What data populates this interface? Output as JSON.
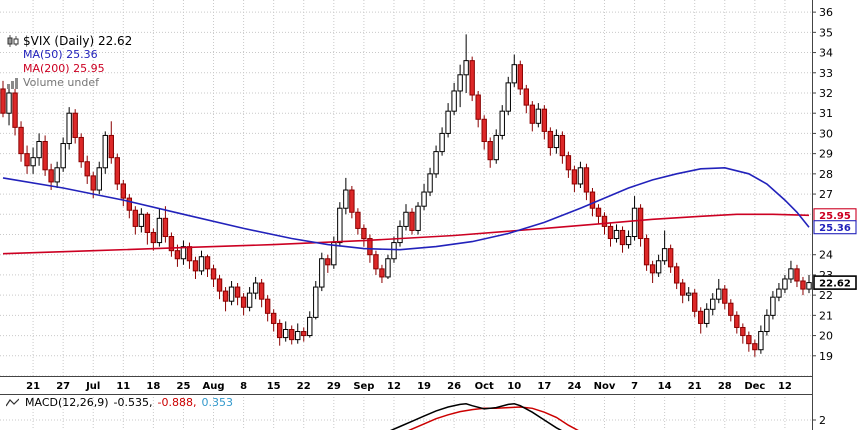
{
  "legend": {
    "symbol": "$VIX (Daily) 22.62",
    "ma50": "MA(50) 25.36",
    "ma200": "MA(200) 25.95",
    "volume": "Volume undef"
  },
  "macd_legend": {
    "name": "MACD(12,26,9)",
    "macd_value": "-0.535,",
    "signal_value": "-0.888,",
    "hist_value": "0.353"
  },
  "badges": [
    {
      "text": "25.95",
      "v": 25.95,
      "color": "#cc0022",
      "bold": false
    },
    {
      "text": "25.36",
      "v": 25.36,
      "color": "#2222bb",
      "bold": false
    },
    {
      "text": "22.62",
      "v": 22.62,
      "color": "#000000",
      "bold": true
    }
  ],
  "colors": {
    "up_stroke": "#000000",
    "up_fill": "#ffffff",
    "down_stroke": "#8a0000",
    "down_fill": "#dd2828",
    "ma50": "#2222bb",
    "ma200": "#cc0022",
    "macd_line": "#000000",
    "macd_signal": "#cc0000",
    "macd_hist_text": "#3399cc",
    "grid": "#c9c9c9",
    "border": "#444444",
    "axis_text": "#000000",
    "volume_legend": "#777777"
  },
  "chart_data": {
    "type": "candlestick",
    "title": "$VIX (Daily)",
    "last_price": 22.62,
    "overlays": [
      {
        "name": "MA(50)",
        "last": 25.36
      },
      {
        "name": "MA(200)",
        "last": 25.95
      },
      {
        "name": "Volume",
        "last": "undef"
      }
    ],
    "y_axis": {
      "max": 36.6,
      "min": 18.0,
      "labels": [
        36,
        35,
        34,
        33,
        32,
        31,
        30,
        29,
        28,
        27,
        24,
        23,
        22,
        21,
        20,
        19
      ]
    },
    "x_axis": {
      "ticks": [
        {
          "label": "21",
          "i": 5
        },
        {
          "label": "27",
          "i": 10
        },
        {
          "label": "Jul",
          "i": 15
        },
        {
          "label": "11",
          "i": 20
        },
        {
          "label": "18",
          "i": 25
        },
        {
          "label": "25",
          "i": 30
        },
        {
          "label": "Aug",
          "i": 35
        },
        {
          "label": "8",
          "i": 40
        },
        {
          "label": "15",
          "i": 45
        },
        {
          "label": "22",
          "i": 50
        },
        {
          "label": "29",
          "i": 55
        },
        {
          "label": "Sep",
          "i": 60
        },
        {
          "label": "12",
          "i": 65
        },
        {
          "label": "19",
          "i": 70
        },
        {
          "label": "26",
          "i": 75
        },
        {
          "label": "Oct",
          "i": 80
        },
        {
          "label": "10",
          "i": 85
        },
        {
          "label": "17",
          "i": 90
        },
        {
          "label": "24",
          "i": 95
        },
        {
          "label": "Nov",
          "i": 100
        },
        {
          "label": "7",
          "i": 105
        },
        {
          "label": "14",
          "i": 110
        },
        {
          "label": "21",
          "i": 115
        },
        {
          "label": "28",
          "i": 120
        },
        {
          "label": "Dec",
          "i": 125
        },
        {
          "label": "12",
          "i": 130
        }
      ]
    },
    "candles": [
      [
        32.2,
        32.6,
        30.8,
        31.0
      ],
      [
        31.0,
        32.3,
        30.4,
        32.0
      ],
      [
        32.0,
        32.2,
        29.9,
        30.3
      ],
      [
        30.3,
        30.6,
        28.6,
        29.0
      ],
      [
        29.0,
        29.4,
        28.0,
        28.4
      ],
      [
        28.4,
        29.3,
        28.0,
        28.8
      ],
      [
        28.8,
        30.0,
        28.4,
        29.6
      ],
      [
        29.6,
        29.9,
        27.9,
        28.2
      ],
      [
        28.2,
        28.5,
        27.2,
        27.6
      ],
      [
        27.6,
        28.6,
        27.3,
        28.3
      ],
      [
        28.3,
        29.8,
        28.1,
        29.5
      ],
      [
        29.5,
        31.3,
        29.2,
        31.0
      ],
      [
        31.0,
        31.2,
        29.5,
        29.8
      ],
      [
        29.8,
        30.0,
        28.3,
        28.6
      ],
      [
        28.6,
        28.9,
        27.5,
        27.9
      ],
      [
        27.9,
        28.1,
        26.8,
        27.2
      ],
      [
        27.2,
        28.6,
        27.0,
        28.3
      ],
      [
        28.3,
        30.1,
        28.0,
        29.9
      ],
      [
        29.9,
        30.6,
        28.5,
        28.8
      ],
      [
        28.8,
        29.0,
        27.2,
        27.5
      ],
      [
        27.5,
        27.7,
        26.4,
        26.8
      ],
      [
        26.8,
        27.0,
        25.8,
        26.2
      ],
      [
        26.2,
        26.4,
        25.0,
        25.4
      ],
      [
        25.4,
        26.3,
        25.1,
        26.0
      ],
      [
        26.0,
        26.1,
        24.5,
        25.1
      ],
      [
        25.1,
        25.3,
        24.2,
        24.6
      ],
      [
        24.6,
        26.3,
        24.4,
        25.8
      ],
      [
        25.8,
        26.4,
        24.6,
        24.9
      ],
      [
        24.9,
        25.1,
        23.9,
        24.2
      ],
      [
        24.2,
        24.5,
        23.4,
        23.8
      ],
      [
        23.8,
        24.7,
        23.5,
        24.4
      ],
      [
        24.4,
        24.6,
        23.3,
        23.7
      ],
      [
        23.7,
        23.9,
        22.8,
        23.2
      ],
      [
        23.2,
        24.2,
        23.0,
        23.9
      ],
      [
        23.9,
        24.0,
        22.9,
        23.3
      ],
      [
        23.3,
        23.5,
        22.4,
        22.8
      ],
      [
        22.8,
        23.0,
        21.8,
        22.2
      ],
      [
        22.2,
        22.4,
        21.2,
        21.7
      ],
      [
        21.7,
        22.7,
        21.5,
        22.4
      ],
      [
        22.4,
        22.6,
        21.5,
        21.9
      ],
      [
        21.9,
        22.1,
        21.0,
        21.4
      ],
      [
        21.4,
        22.4,
        21.2,
        22.1
      ],
      [
        22.1,
        22.9,
        21.8,
        22.6
      ],
      [
        22.6,
        22.8,
        21.4,
        21.8
      ],
      [
        21.8,
        22.0,
        20.7,
        21.1
      ],
      [
        21.1,
        21.3,
        20.2,
        20.6
      ],
      [
        20.6,
        20.8,
        19.5,
        19.9
      ],
      [
        19.9,
        20.7,
        19.7,
        20.3
      ],
      [
        20.3,
        20.5,
        19.56,
        19.8
      ],
      [
        19.8,
        20.6,
        19.6,
        20.2
      ],
      [
        20.2,
        20.4,
        19.7,
        20.0
      ],
      [
        20.0,
        21.2,
        19.9,
        20.9
      ],
      [
        20.9,
        22.7,
        20.8,
        22.4
      ],
      [
        22.4,
        24.1,
        22.2,
        23.8
      ],
      [
        23.8,
        24.0,
        23.1,
        23.5
      ],
      [
        23.5,
        24.9,
        23.3,
        24.6
      ],
      [
        24.6,
        26.6,
        24.4,
        26.3
      ],
      [
        26.3,
        27.8,
        26.0,
        27.2
      ],
      [
        27.2,
        27.4,
        25.8,
        26.1
      ],
      [
        26.1,
        26.3,
        25.0,
        25.3
      ],
      [
        25.3,
        25.5,
        24.4,
        24.8
      ],
      [
        24.8,
        25.0,
        23.6,
        24.0
      ],
      [
        24.0,
        24.2,
        23.0,
        23.3
      ],
      [
        23.3,
        23.5,
        22.6,
        22.9
      ],
      [
        22.9,
        24.0,
        22.8,
        23.8
      ],
      [
        23.8,
        24.9,
        23.6,
        24.6
      ],
      [
        24.6,
        25.7,
        24.4,
        25.4
      ],
      [
        25.4,
        26.5,
        25.2,
        26.1
      ],
      [
        26.1,
        26.3,
        25.0,
        25.2
      ],
      [
        25.2,
        26.6,
        25.0,
        26.4
      ],
      [
        26.4,
        27.5,
        26.2,
        27.1
      ],
      [
        27.1,
        28.3,
        26.9,
        28.0
      ],
      [
        28.0,
        29.4,
        27.8,
        29.1
      ],
      [
        29.1,
        30.3,
        28.9,
        30.0
      ],
      [
        30.0,
        31.5,
        29.8,
        31.1
      ],
      [
        31.1,
        32.5,
        30.9,
        32.1
      ],
      [
        32.1,
        33.4,
        31.3,
        32.9
      ],
      [
        32.9,
        34.9,
        32.0,
        33.6
      ],
      [
        33.6,
        33.8,
        31.6,
        31.9
      ],
      [
        31.9,
        32.1,
        30.3,
        30.7
      ],
      [
        30.7,
        30.9,
        29.2,
        29.6
      ],
      [
        29.6,
        29.8,
        28.3,
        28.7
      ],
      [
        28.7,
        30.2,
        28.5,
        29.9
      ],
      [
        29.9,
        31.4,
        29.7,
        31.1
      ],
      [
        31.1,
        32.8,
        30.9,
        32.5
      ],
      [
        32.5,
        33.9,
        32.3,
        33.4
      ],
      [
        33.4,
        33.6,
        31.9,
        32.2
      ],
      [
        32.2,
        32.4,
        31.0,
        31.4
      ],
      [
        31.4,
        31.6,
        30.1,
        30.5
      ],
      [
        30.5,
        31.5,
        30.3,
        31.2
      ],
      [
        31.2,
        31.4,
        29.7,
        30.1
      ],
      [
        30.1,
        30.3,
        28.9,
        29.3
      ],
      [
        29.3,
        30.2,
        29.0,
        29.9
      ],
      [
        29.9,
        30.1,
        28.5,
        28.9
      ],
      [
        28.9,
        29.1,
        27.8,
        28.2
      ],
      [
        28.2,
        28.4,
        27.1,
        27.5
      ],
      [
        27.5,
        28.6,
        27.3,
        28.3
      ],
      [
        28.3,
        28.5,
        26.7,
        27.1
      ],
      [
        27.1,
        27.3,
        25.9,
        26.3
      ],
      [
        26.3,
        26.5,
        25.5,
        25.9
      ],
      [
        25.9,
        26.1,
        25.0,
        25.4
      ],
      [
        25.4,
        25.6,
        24.4,
        24.8
      ],
      [
        24.8,
        25.5,
        24.6,
        25.2
      ],
      [
        25.2,
        25.4,
        24.1,
        24.5
      ],
      [
        24.5,
        25.2,
        24.3,
        24.9
      ],
      [
        24.9,
        26.9,
        24.7,
        26.3
      ],
      [
        26.3,
        26.5,
        24.4,
        24.8
      ],
      [
        24.8,
        25.0,
        23.2,
        23.5
      ],
      [
        23.5,
        23.7,
        22.6,
        23.1
      ],
      [
        23.1,
        24.0,
        22.9,
        23.7
      ],
      [
        23.7,
        25.2,
        23.5,
        24.3
      ],
      [
        24.3,
        24.5,
        23.1,
        23.4
      ],
      [
        23.4,
        23.6,
        22.3,
        22.6
      ],
      [
        22.6,
        22.8,
        21.6,
        22.0
      ],
      [
        22.0,
        22.4,
        21.7,
        22.1
      ],
      [
        22.1,
        22.3,
        20.9,
        21.2
      ],
      [
        21.2,
        21.4,
        20.1,
        20.6
      ],
      [
        20.6,
        21.6,
        20.4,
        21.3
      ],
      [
        21.3,
        22.1,
        21.0,
        21.8
      ],
      [
        21.8,
        22.8,
        21.6,
        22.3
      ],
      [
        22.3,
        22.5,
        21.3,
        21.6
      ],
      [
        21.6,
        21.8,
        20.7,
        21.0
      ],
      [
        21.0,
        21.2,
        20.1,
        20.4
      ],
      [
        20.4,
        20.6,
        19.6,
        20.0
      ],
      [
        20.0,
        20.2,
        19.2,
        19.6
      ],
      [
        19.6,
        19.8,
        18.95,
        19.3
      ],
      [
        19.3,
        20.5,
        19.1,
        20.2
      ],
      [
        20.2,
        21.3,
        20.0,
        21.0
      ],
      [
        21.0,
        22.2,
        20.8,
        21.9
      ],
      [
        21.9,
        22.6,
        21.7,
        22.3
      ],
      [
        22.3,
        23.0,
        22.1,
        22.8
      ],
      [
        22.8,
        23.7,
        22.6,
        23.3
      ],
      [
        23.3,
        23.5,
        22.4,
        22.7
      ],
      [
        22.7,
        22.9,
        22.0,
        22.3
      ],
      [
        22.3,
        23.0,
        22.1,
        22.62
      ]
    ],
    "ma50_points": [
      [
        0,
        27.8
      ],
      [
        10,
        27.3
      ],
      [
        20,
        26.7
      ],
      [
        30,
        26.0
      ],
      [
        40,
        25.3
      ],
      [
        48,
        24.8
      ],
      [
        54,
        24.5
      ],
      [
        60,
        24.3
      ],
      [
        66,
        24.25
      ],
      [
        72,
        24.4
      ],
      [
        78,
        24.65
      ],
      [
        84,
        25.05
      ],
      [
        90,
        25.6
      ],
      [
        96,
        26.3
      ],
      [
        100,
        26.8
      ],
      [
        104,
        27.3
      ],
      [
        108,
        27.7
      ],
      [
        112,
        28.0
      ],
      [
        116,
        28.25
      ],
      [
        120,
        28.3
      ],
      [
        124,
        28.0
      ],
      [
        127,
        27.5
      ],
      [
        130,
        26.7
      ],
      [
        132,
        26.1
      ],
      [
        134,
        25.36
      ]
    ],
    "ma200_points": [
      [
        0,
        24.05
      ],
      [
        15,
        24.2
      ],
      [
        30,
        24.35
      ],
      [
        45,
        24.5
      ],
      [
        60,
        24.7
      ],
      [
        75,
        24.95
      ],
      [
        90,
        25.3
      ],
      [
        100,
        25.55
      ],
      [
        108,
        25.75
      ],
      [
        116,
        25.9
      ],
      [
        122,
        26.0
      ],
      [
        128,
        26.0
      ],
      [
        134,
        25.95
      ]
    ],
    "macd": {
      "params": "12,26,9",
      "macd": -0.535,
      "signal": -0.888,
      "histogram": 0.353,
      "axis_label": "2",
      "axis_value": 2,
      "line_points": [
        [
          64,
          1.1
        ],
        [
          66,
          1.5
        ],
        [
          68,
          1.9
        ],
        [
          70,
          2.3
        ],
        [
          72,
          2.7
        ],
        [
          74,
          3.0
        ],
        [
          76,
          3.2
        ],
        [
          77,
          3.25
        ],
        [
          78,
          3.1
        ],
        [
          80,
          2.85
        ],
        [
          82,
          2.95
        ],
        [
          84,
          3.2
        ],
        [
          85,
          3.25
        ],
        [
          86,
          3.1
        ],
        [
          88,
          2.6
        ],
        [
          90,
          2.0
        ],
        [
          92,
          1.4
        ],
        [
          94,
          0.9
        ]
      ],
      "signal_points": [
        [
          66,
          0.9
        ],
        [
          68,
          1.3
        ],
        [
          70,
          1.7
        ],
        [
          72,
          2.1
        ],
        [
          74,
          2.4
        ],
        [
          76,
          2.65
        ],
        [
          78,
          2.8
        ],
        [
          80,
          2.9
        ],
        [
          82,
          2.9
        ],
        [
          84,
          2.95
        ],
        [
          86,
          3.0
        ],
        [
          88,
          2.9
        ],
        [
          90,
          2.6
        ],
        [
          92,
          2.2
        ],
        [
          94,
          1.6
        ],
        [
          96,
          1.1
        ]
      ]
    }
  }
}
